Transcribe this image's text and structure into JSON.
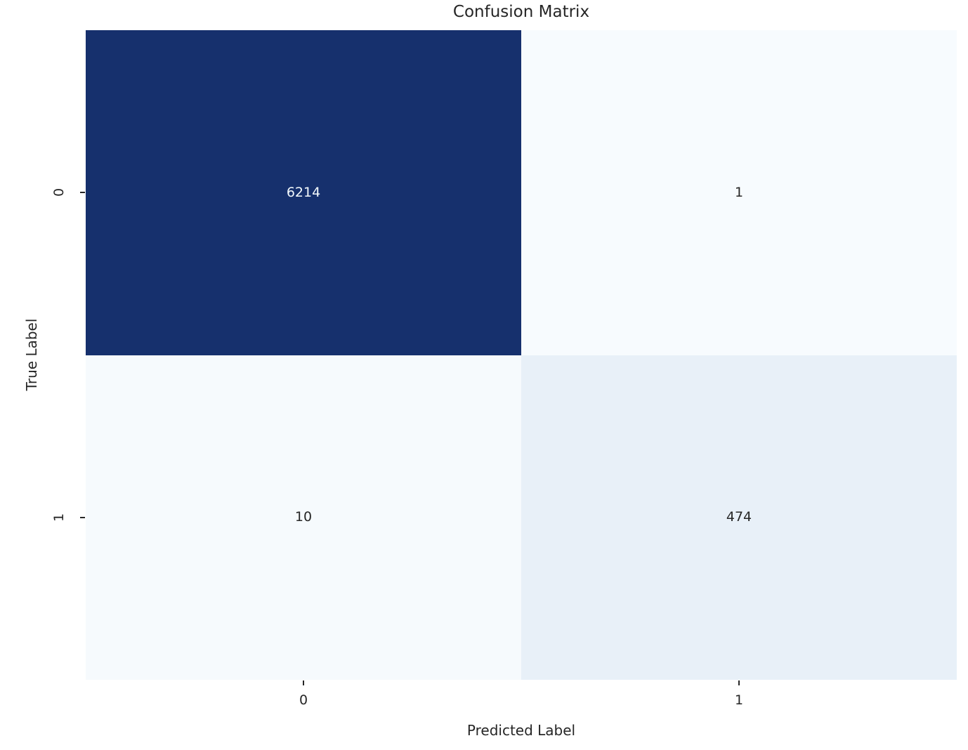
{
  "chart_data": {
    "type": "heatmap",
    "title": "Confusion Matrix",
    "xlabel": "Predicted Label",
    "ylabel": "True Label",
    "x_tick_labels": [
      "0",
      "1"
    ],
    "y_tick_labels": [
      "0",
      "1"
    ],
    "matrix": [
      [
        6214,
        1
      ],
      [
        10,
        474
      ]
    ],
    "colormap": "Blues",
    "grid": "off",
    "legend": "none",
    "colors": {
      "figure_background": "#ffffff",
      "text": "#262626"
    },
    "cells": [
      {
        "true_label": "0",
        "predicted_label": "0",
        "value": "6214",
        "bg": "#16306d",
        "text_color": "#f2f8fc"
      },
      {
        "true_label": "0",
        "predicted_label": "1",
        "value": "1",
        "bg": "#f7fbfe",
        "text_color": "#262626"
      },
      {
        "true_label": "1",
        "predicted_label": "0",
        "value": "10",
        "bg": "#f6fafd",
        "text_color": "#262626"
      },
      {
        "true_label": "1",
        "predicted_label": "1",
        "value": "474",
        "bg": "#e8f0f8",
        "text_color": "#262626"
      }
    ]
  }
}
